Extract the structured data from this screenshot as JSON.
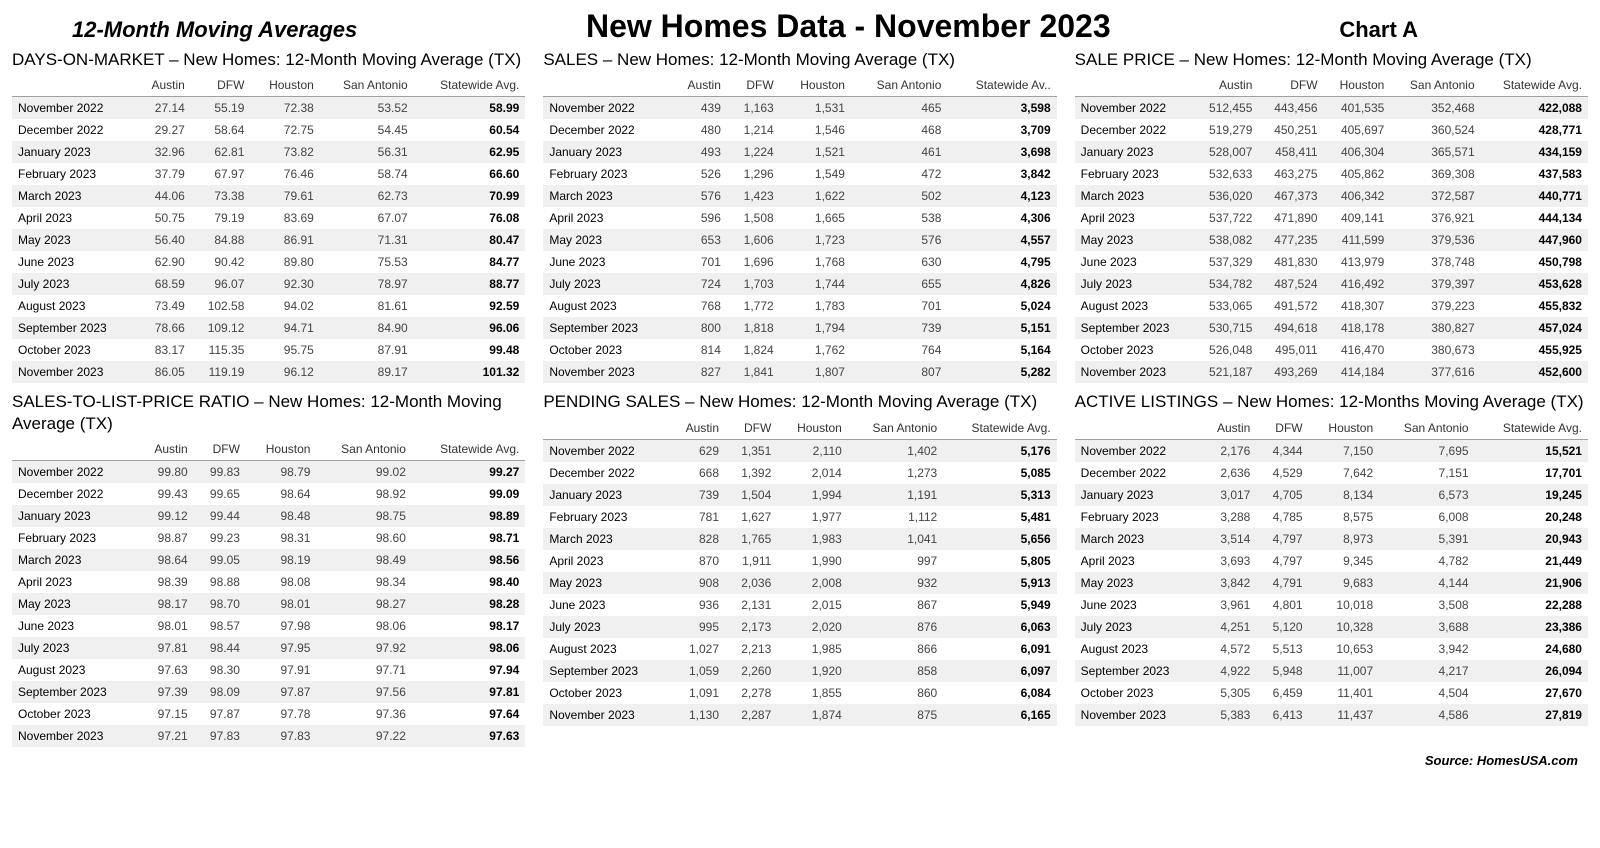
{
  "header": {
    "left": "12-Month Moving Averages",
    "center": "New Homes Data - November 2023",
    "right": "Chart A"
  },
  "columns": [
    "Austin",
    "DFW",
    "Houston",
    "San Antonio",
    "Statewide Avg."
  ],
  "columns_trunc": [
    "Austin",
    "DFW",
    "Houston",
    "San Antonio",
    "Statewide Av.."
  ],
  "months": [
    "November 2022",
    "December 2022",
    "January 2023",
    "February 2023",
    "March 2023",
    "April 2023",
    "May 2023",
    "June 2023",
    "July 2023",
    "August 2023",
    "September 2023",
    "October 2023",
    "November 2023"
  ],
  "tables": {
    "dom": {
      "title": "DAYS-ON-MARKET – New Homes:  12-Month Moving Average (TX)",
      "rows": [
        [
          "27.14",
          "55.19",
          "72.38",
          "53.52",
          "58.99"
        ],
        [
          "29.27",
          "58.64",
          "72.75",
          "54.45",
          "60.54"
        ],
        [
          "32.96",
          "62.81",
          "73.82",
          "56.31",
          "62.95"
        ],
        [
          "37.79",
          "67.97",
          "76.46",
          "58.74",
          "66.60"
        ],
        [
          "44.06",
          "73.38",
          "79.61",
          "62.73",
          "70.99"
        ],
        [
          "50.75",
          "79.19",
          "83.69",
          "67.07",
          "76.08"
        ],
        [
          "56.40",
          "84.88",
          "86.91",
          "71.31",
          "80.47"
        ],
        [
          "62.90",
          "90.42",
          "89.80",
          "75.53",
          "84.77"
        ],
        [
          "68.59",
          "96.07",
          "92.30",
          "78.97",
          "88.77"
        ],
        [
          "73.49",
          "102.58",
          "94.02",
          "81.61",
          "92.59"
        ],
        [
          "78.66",
          "109.12",
          "94.71",
          "84.90",
          "96.06"
        ],
        [
          "83.17",
          "115.35",
          "95.75",
          "87.91",
          "99.48"
        ],
        [
          "86.05",
          "119.19",
          "96.12",
          "89.17",
          "101.32"
        ]
      ]
    },
    "sales": {
      "title": "SALES – New Homes:  12-Month Moving Average (TX)",
      "rows": [
        [
          "439",
          "1,163",
          "1,531",
          "465",
          "3,598"
        ],
        [
          "480",
          "1,214",
          "1,546",
          "468",
          "3,709"
        ],
        [
          "493",
          "1,224",
          "1,521",
          "461",
          "3,698"
        ],
        [
          "526",
          "1,296",
          "1,549",
          "472",
          "3,842"
        ],
        [
          "576",
          "1,423",
          "1,622",
          "502",
          "4,123"
        ],
        [
          "596",
          "1,508",
          "1,665",
          "538",
          "4,306"
        ],
        [
          "653",
          "1,606",
          "1,723",
          "576",
          "4,557"
        ],
        [
          "701",
          "1,696",
          "1,768",
          "630",
          "4,795"
        ],
        [
          "724",
          "1,703",
          "1,744",
          "655",
          "4,826"
        ],
        [
          "768",
          "1,772",
          "1,783",
          "701",
          "5,024"
        ],
        [
          "800",
          "1,818",
          "1,794",
          "739",
          "5,151"
        ],
        [
          "814",
          "1,824",
          "1,762",
          "764",
          "5,164"
        ],
        [
          "827",
          "1,841",
          "1,807",
          "807",
          "5,282"
        ]
      ]
    },
    "price": {
      "title": "SALE PRICE – New Homes: 12-Month Moving Average (TX)",
      "rows": [
        [
          "512,455",
          "443,456",
          "401,535",
          "352,468",
          "422,088"
        ],
        [
          "519,279",
          "450,251",
          "405,697",
          "360,524",
          "428,771"
        ],
        [
          "528,007",
          "458,411",
          "406,304",
          "365,571",
          "434,159"
        ],
        [
          "532,633",
          "463,275",
          "405,862",
          "369,308",
          "437,583"
        ],
        [
          "536,020",
          "467,373",
          "406,342",
          "372,587",
          "440,771"
        ],
        [
          "537,722",
          "471,890",
          "409,141",
          "376,921",
          "444,134"
        ],
        [
          "538,082",
          "477,235",
          "411,599",
          "379,536",
          "447,960"
        ],
        [
          "537,329",
          "481,830",
          "413,979",
          "378,748",
          "450,798"
        ],
        [
          "534,782",
          "487,524",
          "416,492",
          "379,397",
          "453,628"
        ],
        [
          "533,065",
          "491,572",
          "418,307",
          "379,223",
          "455,832"
        ],
        [
          "530,715",
          "494,618",
          "418,178",
          "380,827",
          "457,024"
        ],
        [
          "526,048",
          "495,011",
          "416,470",
          "380,673",
          "455,925"
        ],
        [
          "521,187",
          "493,269",
          "414,184",
          "377,616",
          "452,600"
        ]
      ]
    },
    "ratio": {
      "title": "SALES-TO-LIST-PRICE RATIO – New Homes:  12-Month Moving Average (TX)",
      "rows": [
        [
          "99.80",
          "99.83",
          "98.79",
          "99.02",
          "99.27"
        ],
        [
          "99.43",
          "99.65",
          "98.64",
          "98.92",
          "99.09"
        ],
        [
          "99.12",
          "99.44",
          "98.48",
          "98.75",
          "98.89"
        ],
        [
          "98.87",
          "99.23",
          "98.31",
          "98.60",
          "98.71"
        ],
        [
          "98.64",
          "99.05",
          "98.19",
          "98.49",
          "98.56"
        ],
        [
          "98.39",
          "98.88",
          "98.08",
          "98.34",
          "98.40"
        ],
        [
          "98.17",
          "98.70",
          "98.01",
          "98.27",
          "98.28"
        ],
        [
          "98.01",
          "98.57",
          "97.98",
          "98.06",
          "98.17"
        ],
        [
          "97.81",
          "98.44",
          "97.95",
          "97.92",
          "98.06"
        ],
        [
          "97.63",
          "98.30",
          "97.91",
          "97.71",
          "97.94"
        ],
        [
          "97.39",
          "98.09",
          "97.87",
          "97.56",
          "97.81"
        ],
        [
          "97.15",
          "97.87",
          "97.78",
          "97.36",
          "97.64"
        ],
        [
          "97.21",
          "97.83",
          "97.83",
          "97.22",
          "97.63"
        ]
      ]
    },
    "pending": {
      "title": "PENDING SALES – New Homes:  12-Month Moving Average (TX)",
      "rows": [
        [
          "629",
          "1,351",
          "2,110",
          "1,402",
          "5,176"
        ],
        [
          "668",
          "1,392",
          "2,014",
          "1,273",
          "5,085"
        ],
        [
          "739",
          "1,504",
          "1,994",
          "1,191",
          "5,313"
        ],
        [
          "781",
          "1,627",
          "1,977",
          "1,112",
          "5,481"
        ],
        [
          "828",
          "1,765",
          "1,983",
          "1,041",
          "5,656"
        ],
        [
          "870",
          "1,911",
          "1,990",
          "997",
          "5,805"
        ],
        [
          "908",
          "2,036",
          "2,008",
          "932",
          "5,913"
        ],
        [
          "936",
          "2,131",
          "2,015",
          "867",
          "5,949"
        ],
        [
          "995",
          "2,173",
          "2,020",
          "876",
          "6,063"
        ],
        [
          "1,027",
          "2,213",
          "1,985",
          "866",
          "6,091"
        ],
        [
          "1,059",
          "2,260",
          "1,920",
          "858",
          "6,097"
        ],
        [
          "1,091",
          "2,278",
          "1,855",
          "860",
          "6,084"
        ],
        [
          "1,130",
          "2,287",
          "1,874",
          "875",
          "6,165"
        ]
      ]
    },
    "active": {
      "title": "ACTIVE LISTINGS – New Homes: 12-Months  Moving Average (TX)",
      "rows": [
        [
          "2,176",
          "4,344",
          "7,150",
          "7,695",
          "15,521"
        ],
        [
          "2,636",
          "4,529",
          "7,642",
          "7,151",
          "17,701"
        ],
        [
          "3,017",
          "4,705",
          "8,134",
          "6,573",
          "19,245"
        ],
        [
          "3,288",
          "4,785",
          "8,575",
          "6,008",
          "20,248"
        ],
        [
          "3,514",
          "4,797",
          "8,973",
          "5,391",
          "20,943"
        ],
        [
          "3,693",
          "4,797",
          "9,345",
          "4,782",
          "21,449"
        ],
        [
          "3,842",
          "4,791",
          "9,683",
          "4,144",
          "21,906"
        ],
        [
          "3,961",
          "4,801",
          "10,018",
          "3,508",
          "22,288"
        ],
        [
          "4,251",
          "5,120",
          "10,328",
          "3,688",
          "23,386"
        ],
        [
          "4,572",
          "5,513",
          "10,653",
          "3,942",
          "24,680"
        ],
        [
          "4,922",
          "5,948",
          "11,007",
          "4,217",
          "26,094"
        ],
        [
          "5,305",
          "6,459",
          "11,401",
          "4,504",
          "27,670"
        ],
        [
          "5,383",
          "6,413",
          "11,437",
          "4,586",
          "27,819"
        ]
      ]
    }
  },
  "source": "Source: HomesUSA.com"
}
